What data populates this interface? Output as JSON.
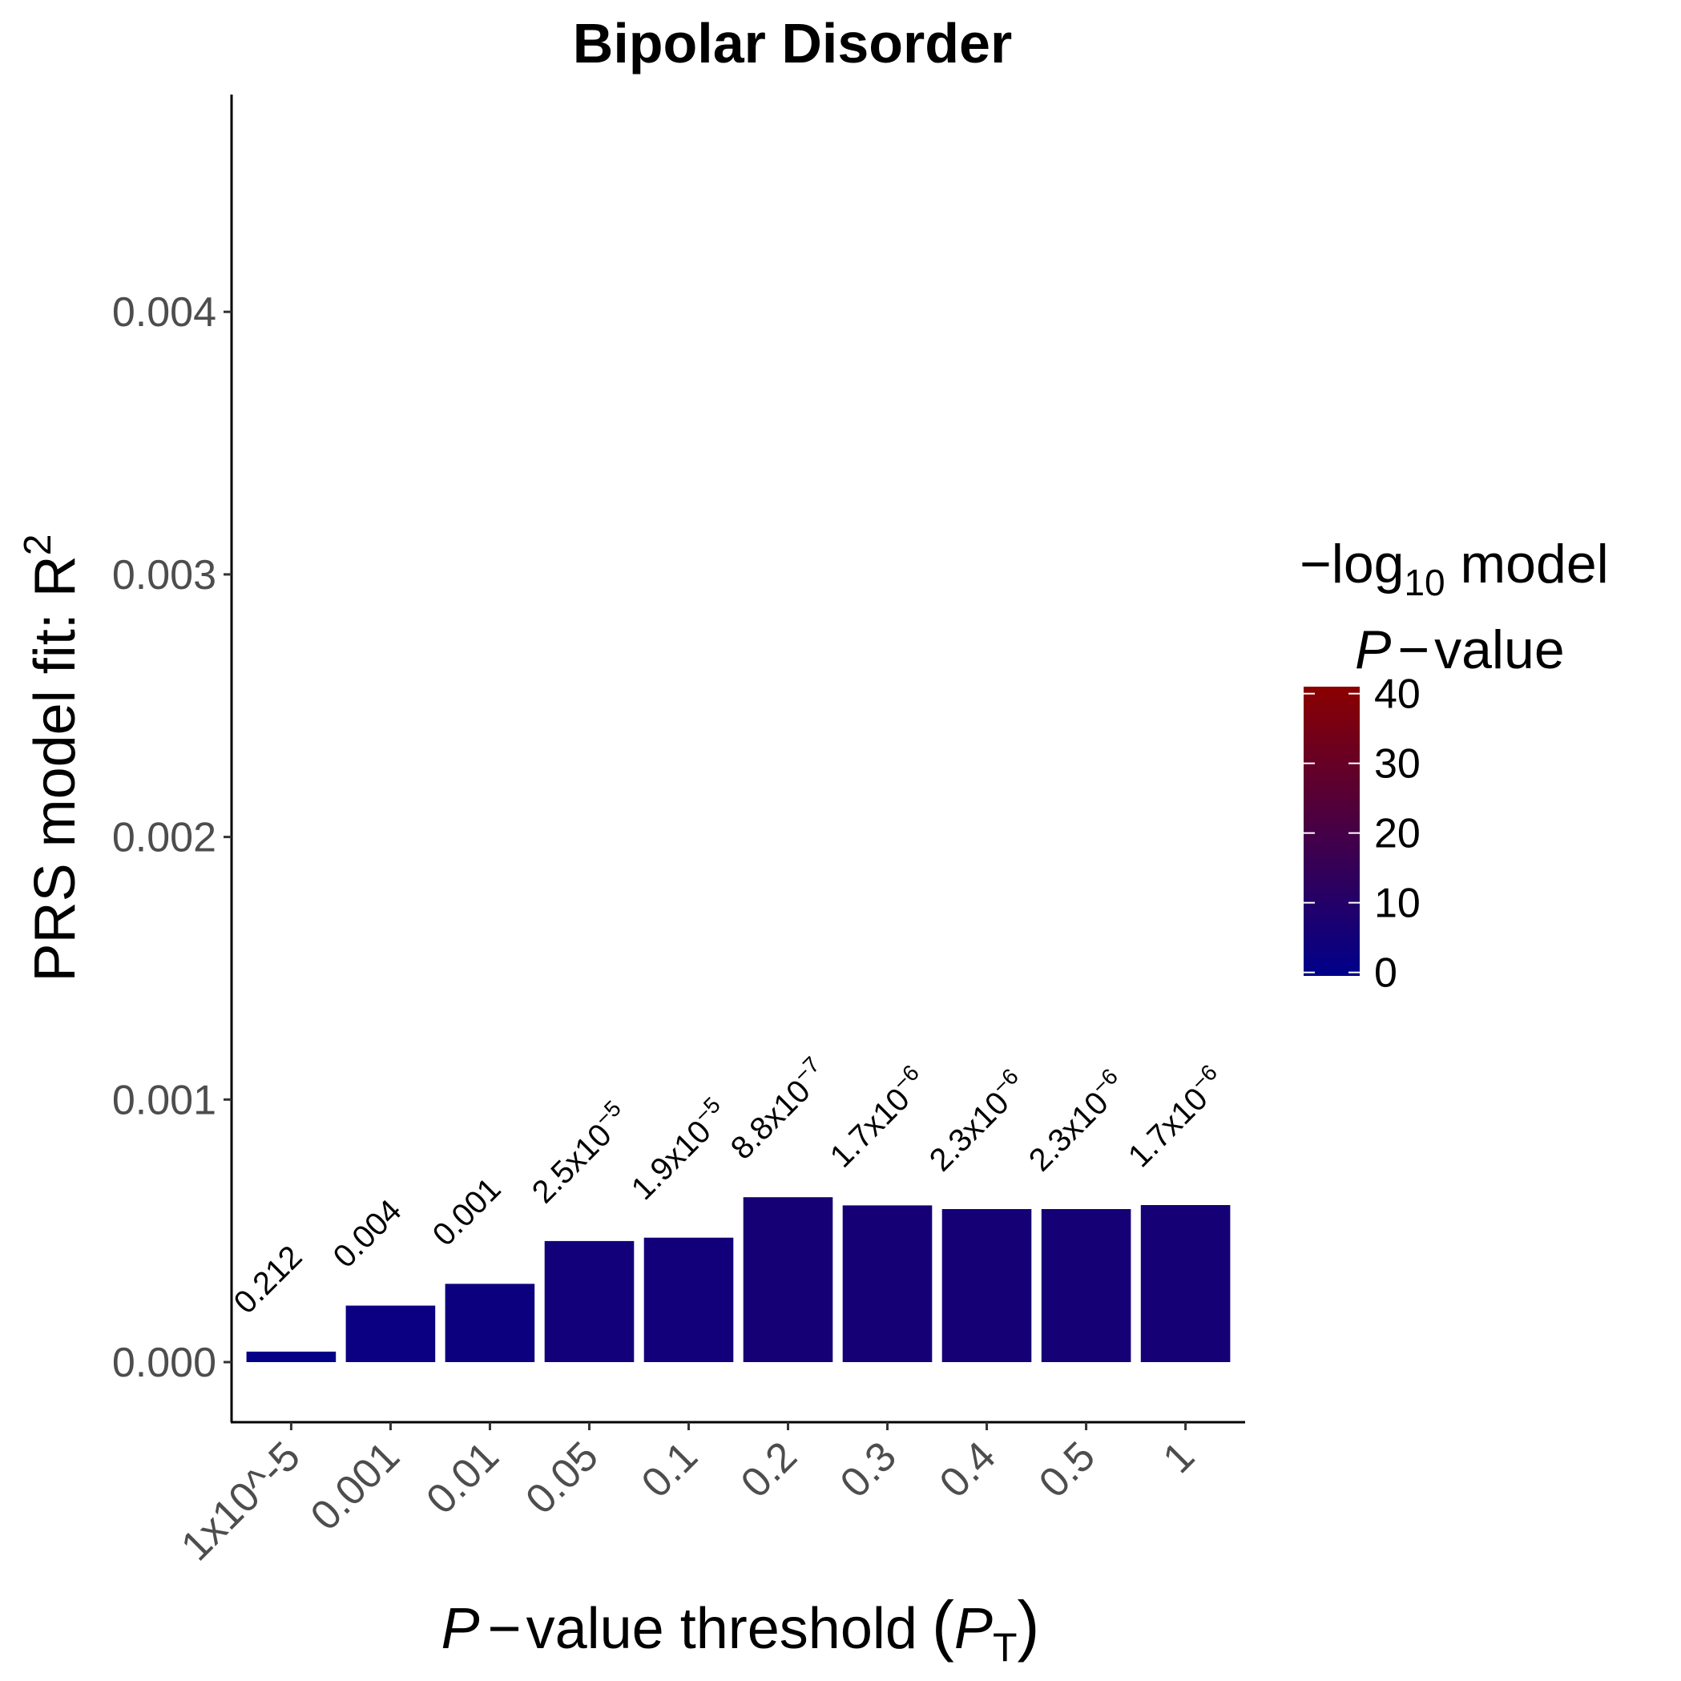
{
  "chart_data": {
    "type": "bar",
    "title": "Bipolar Disorder",
    "xlabel": {
      "p": "P",
      "minus": "−",
      "text": "value threshold",
      "open": "(",
      "sym": "P",
      "sub": "T",
      "close": ")"
    },
    "ylabel": {
      "text": "PRS model fit:  R",
      "sup": "2"
    },
    "ylim": [
      -0.000225,
      0.0048
    ],
    "yticks": [
      "0.000",
      "0.001",
      "0.002",
      "0.003",
      "0.004"
    ],
    "ytick_values": [
      0,
      0.001,
      0.002,
      0.003,
      0.004
    ],
    "categories": [
      "1x10^-5",
      "0.001",
      "0.01",
      "0.05",
      "0.1",
      "0.2",
      "0.3",
      "0.4",
      "0.5",
      "1"
    ],
    "values": [
      4e-05,
      0.000215,
      0.000298,
      0.000461,
      0.000474,
      0.000628,
      0.000597,
      0.000583,
      0.000583,
      0.000598
    ],
    "bar_labels": [
      {
        "base": "0.212",
        "sup": ""
      },
      {
        "base": "0.004",
        "sup": ""
      },
      {
        "base": "0.001",
        "sup": ""
      },
      {
        "base": "2.5x10",
        "sup": "−5"
      },
      {
        "base": "1.9x10",
        "sup": "−5"
      },
      {
        "base": "8.8x10",
        "sup": "−7"
      },
      {
        "base": "1.7x10",
        "sup": "−6"
      },
      {
        "base": "2.3x10",
        "sup": "−6"
      },
      {
        "base": "2.3x10",
        "sup": "−6"
      },
      {
        "base": "1.7x10",
        "sup": "−6"
      }
    ],
    "neg_log10_p": [
      0.67,
      2.4,
      3.0,
      4.6,
      4.7,
      6.06,
      5.77,
      5.64,
      5.64,
      5.77
    ],
    "legend": {
      "title_line1": {
        "minus": "−",
        "log": "log",
        "sub": "10",
        "rest": " model"
      },
      "title_line2": {
        "p": "P",
        "minus": "−",
        "rest": "value"
      },
      "ticks": [
        "0",
        "10",
        "20",
        "30",
        "40"
      ],
      "tick_values": [
        0,
        10,
        20,
        30,
        40
      ],
      "range": [
        -0.5,
        41
      ],
      "low_color": "#00008b",
      "high_color": "#8b0000",
      "placement": "right"
    }
  }
}
